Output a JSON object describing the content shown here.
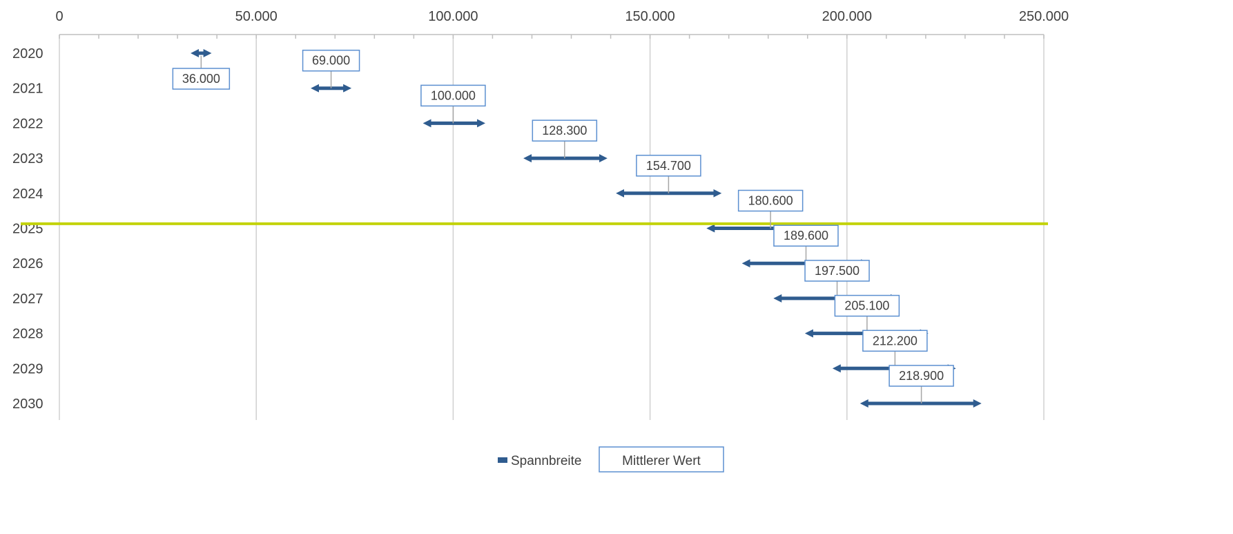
{
  "chart_data": {
    "type": "range-bar",
    "title": "",
    "xlabel": "",
    "ylabel": "",
    "xlim": [
      0,
      250000
    ],
    "x_ticks": [
      {
        "value": 0,
        "label": "0"
      },
      {
        "value": 50000,
        "label": "50.000"
      },
      {
        "value": 100000,
        "label": "100.000"
      },
      {
        "value": 150000,
        "label": "150.000"
      },
      {
        "value": 200000,
        "label": "200.000"
      },
      {
        "value": 250000,
        "label": "250.000"
      }
    ],
    "minor_tick_step": 10000,
    "grid": true,
    "x_axis_position": "top",
    "categories": [
      "2020",
      "2021",
      "2022",
      "2023",
      "2024",
      "2025",
      "2026",
      "2027",
      "2028",
      "2029",
      "2030"
    ],
    "series": [
      {
        "name": "Spannbreite",
        "color": "#2f5c8f",
        "low": [
          33500,
          64000,
          92500,
          118000,
          141500,
          164500,
          173500,
          181500,
          189500,
          196500,
          203500
        ],
        "high": [
          38500,
          74000,
          108000,
          139000,
          168000,
          196500,
          205500,
          213000,
          220500,
          227500,
          234000
        ]
      },
      {
        "name": "Mittlerer Wert",
        "values": [
          36000,
          69000,
          100000,
          128300,
          154700,
          180600,
          189600,
          197500,
          205100,
          212200,
          218900
        ],
        "labels": [
          "36.000",
          "69.000",
          "100.000",
          "128.300",
          "154.700",
          "180.600",
          "189.600",
          "197.500",
          "205.100",
          "212.200",
          "218.900"
        ],
        "label_border_color": "#5b8fd0",
        "leader_color": "#a6a6a6"
      }
    ],
    "reference_line": {
      "between_categories": [
        "2024",
        "2025"
      ],
      "color": "#c3d30a"
    },
    "legend": {
      "position": "bottom",
      "entries": [
        "Spannbreite",
        "Mittlerer Wert"
      ]
    },
    "colors": {
      "gridline": "#d0d0d0",
      "text": "#404040",
      "axis": "#bfbfbf"
    }
  }
}
